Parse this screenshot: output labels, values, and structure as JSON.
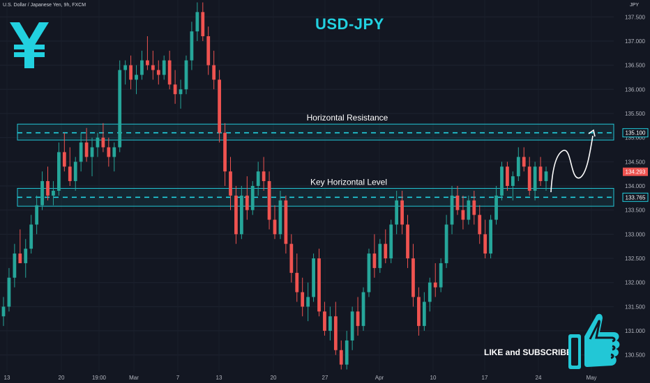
{
  "header": {
    "symbol_text": "U.S. Dollar / Japanese Yen, 9h, FXCM",
    "currency": "JPY",
    "title": "USD-JPY",
    "like_text": "LIKE and SUBSCRIBE"
  },
  "colors": {
    "background": "#131722",
    "up": "#26a69a",
    "down": "#ef5350",
    "accent": "#22d1e0",
    "zone_fill": "#1a6e78",
    "zone_border": "#22c7d6"
  },
  "icons": [
    "yen-icon",
    "thumbs-up-icon",
    "arrow-icon"
  ],
  "chart_data": {
    "type": "candlestick",
    "title": "USD-JPY",
    "ylim": [
      130.15,
      137.85
    ],
    "y_ticks": [
      "130.500",
      "131.000",
      "131.500",
      "132.000",
      "132.500",
      "133.000",
      "133.500",
      "134.000",
      "134.500",
      "135.000",
      "135.500",
      "136.000",
      "136.500",
      "137.000",
      "137.500"
    ],
    "x_ticks": [
      "13",
      "20",
      "19:00",
      "Mar",
      "7",
      "13",
      "20",
      "27",
      "Apr",
      "10",
      "17",
      "24",
      "May"
    ],
    "candles": [
      [
        131.3,
        131.7,
        131.1,
        131.5
      ],
      [
        131.5,
        132.3,
        131.4,
        132.1
      ],
      [
        132.1,
        132.8,
        131.9,
        132.6
      ],
      [
        132.6,
        133.1,
        132.4,
        132.4
      ],
      [
        132.4,
        132.9,
        132.1,
        132.7
      ],
      [
        132.7,
        133.4,
        132.6,
        133.2
      ],
      [
        133.2,
        133.8,
        133.0,
        133.6
      ],
      [
        133.6,
        134.3,
        133.5,
        134.1
      ],
      [
        134.1,
        134.4,
        133.7,
        133.8
      ],
      [
        133.8,
        134.1,
        133.6,
        133.9
      ],
      [
        133.9,
        134.9,
        133.8,
        134.7
      ],
      [
        134.7,
        135.1,
        134.3,
        134.4
      ],
      [
        134.4,
        134.8,
        134.0,
        134.1
      ],
      [
        134.1,
        134.6,
        133.9,
        134.5
      ],
      [
        134.5,
        135.1,
        134.3,
        134.9
      ],
      [
        134.9,
        135.2,
        134.5,
        134.6
      ],
      [
        134.6,
        135.0,
        134.2,
        134.8
      ],
      [
        134.8,
        135.1,
        134.6,
        135.0
      ],
      [
        135.0,
        135.3,
        134.7,
        134.8
      ],
      [
        134.8,
        135.0,
        134.4,
        134.6
      ],
      [
        134.6,
        134.9,
        134.3,
        134.8
      ],
      [
        134.8,
        136.6,
        134.7,
        136.4
      ],
      [
        136.4,
        136.6,
        136.1,
        136.5
      ],
      [
        136.5,
        136.7,
        136.0,
        136.2
      ],
      [
        136.2,
        136.5,
        135.9,
        136.3
      ],
      [
        136.3,
        136.8,
        136.2,
        136.6
      ],
      [
        136.6,
        137.1,
        136.4,
        136.5
      ],
      [
        136.5,
        136.8,
        136.2,
        136.4
      ],
      [
        136.4,
        136.6,
        136.1,
        136.3
      ],
      [
        136.3,
        136.7,
        136.2,
        136.6
      ],
      [
        136.6,
        136.8,
        136.0,
        136.1
      ],
      [
        136.1,
        136.4,
        135.7,
        135.9
      ],
      [
        135.9,
        136.2,
        135.6,
        136.0
      ],
      [
        136.0,
        136.7,
        135.9,
        136.6
      ],
      [
        136.6,
        137.4,
        136.4,
        137.2
      ],
      [
        137.2,
        137.8,
        137.0,
        137.6
      ],
      [
        137.6,
        137.8,
        137.0,
        137.1
      ],
      [
        137.1,
        137.3,
        136.3,
        136.5
      ],
      [
        136.5,
        136.8,
        136.0,
        136.2
      ],
      [
        136.2,
        136.4,
        134.9,
        135.1
      ],
      [
        135.1,
        135.3,
        134.0,
        134.3
      ],
      [
        134.3,
        134.6,
        133.5,
        133.8
      ],
      [
        133.8,
        134.0,
        132.8,
        133.0
      ],
      [
        133.0,
        134.0,
        132.9,
        133.8
      ],
      [
        133.8,
        134.2,
        133.3,
        133.5
      ],
      [
        133.5,
        134.1,
        133.4,
        134.0
      ],
      [
        134.0,
        134.5,
        133.8,
        134.3
      ],
      [
        134.3,
        134.6,
        133.9,
        134.1
      ],
      [
        134.1,
        134.3,
        133.1,
        133.3
      ],
      [
        133.3,
        133.6,
        132.9,
        133.0
      ],
      [
        133.0,
        133.9,
        132.9,
        133.7
      ],
      [
        133.7,
        133.8,
        132.6,
        132.8
      ],
      [
        132.8,
        133.0,
        132.0,
        132.2
      ],
      [
        132.2,
        132.6,
        131.6,
        131.8
      ],
      [
        131.8,
        132.1,
        131.3,
        131.5
      ],
      [
        131.5,
        132.0,
        131.2,
        131.7
      ],
      [
        131.7,
        132.6,
        131.6,
        132.5
      ],
      [
        132.5,
        132.7,
        131.3,
        131.4
      ],
      [
        131.4,
        131.6,
        130.9,
        131.0
      ],
      [
        131.0,
        131.5,
        130.8,
        131.3
      ],
      [
        131.3,
        131.6,
        130.5,
        130.6
      ],
      [
        130.6,
        130.8,
        130.2,
        130.3
      ],
      [
        130.3,
        131.0,
        130.2,
        130.8
      ],
      [
        130.8,
        131.5,
        130.6,
        131.4
      ],
      [
        131.4,
        131.7,
        130.9,
        131.1
      ],
      [
        131.1,
        131.9,
        131.0,
        131.8
      ],
      [
        131.8,
        132.7,
        131.7,
        132.6
      ],
      [
        132.6,
        133.0,
        132.1,
        132.3
      ],
      [
        132.3,
        132.9,
        132.2,
        132.8
      ],
      [
        132.8,
        133.1,
        132.4,
        132.5
      ],
      [
        132.5,
        133.3,
        132.4,
        133.2
      ],
      [
        133.2,
        133.9,
        133.0,
        133.7
      ],
      [
        133.7,
        133.9,
        133.0,
        133.2
      ],
      [
        133.2,
        133.4,
        132.3,
        132.5
      ],
      [
        132.5,
        132.8,
        131.5,
        131.7
      ],
      [
        131.7,
        131.9,
        130.9,
        131.1
      ],
      [
        131.1,
        131.8,
        131.0,
        131.6
      ],
      [
        131.6,
        132.1,
        131.4,
        132.0
      ],
      [
        132.0,
        132.4,
        131.7,
        131.9
      ],
      [
        131.9,
        132.5,
        131.8,
        132.4
      ],
      [
        132.4,
        133.4,
        132.3,
        133.2
      ],
      [
        133.2,
        134.0,
        133.0,
        133.8
      ],
      [
        133.8,
        134.0,
        133.4,
        133.5
      ],
      [
        133.5,
        133.8,
        133.1,
        133.3
      ],
      [
        133.3,
        133.8,
        133.2,
        133.7
      ],
      [
        133.7,
        133.9,
        133.2,
        133.4
      ],
      [
        133.4,
        133.6,
        132.8,
        133.0
      ],
      [
        133.0,
        133.3,
        132.5,
        132.6
      ],
      [
        132.6,
        133.4,
        132.5,
        133.3
      ],
      [
        133.3,
        134.0,
        133.2,
        133.8
      ],
      [
        133.8,
        134.5,
        133.7,
        134.4
      ],
      [
        134.4,
        134.5,
        133.9,
        134.0
      ],
      [
        134.0,
        134.3,
        133.7,
        134.2
      ],
      [
        134.2,
        134.8,
        134.1,
        134.6
      ],
      [
        134.6,
        134.8,
        134.3,
        134.4
      ],
      [
        134.4,
        134.6,
        133.8,
        133.9
      ],
      [
        133.9,
        134.5,
        133.7,
        134.4
      ],
      [
        134.4,
        134.6,
        134.0,
        134.1
      ],
      [
        134.1,
        134.4,
        133.9,
        134.3
      ]
    ],
    "annotations": [
      {
        "text": "Horizontal Resistance",
        "type": "zone",
        "low": 134.95,
        "high": 135.28,
        "line": 135.1
      },
      {
        "text": "Key Horizontal Level",
        "type": "zone",
        "low": 133.58,
        "high": 133.95,
        "line": 133.765
      }
    ],
    "price_labels": [
      {
        "text": "135.100",
        "value": 135.1
      },
      {
        "text": "134.293",
        "value": 134.293
      },
      {
        "text": "133.765",
        "value": 133.765
      }
    ]
  }
}
